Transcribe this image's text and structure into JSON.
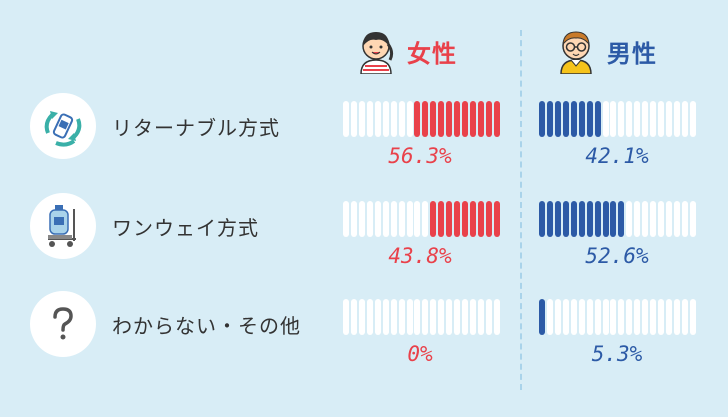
{
  "colors": {
    "background": "#d8edf6",
    "female": "#e9414a",
    "male": "#2c5aa6",
    "empty_segment": "#ffffff",
    "divider": "#a9d3ea"
  },
  "headers": {
    "female": {
      "label": "女性",
      "icon": "girl-avatar-icon"
    },
    "male": {
      "label": "男性",
      "icon": "boy-glasses-avatar-icon"
    }
  },
  "chart_data": {
    "type": "bar",
    "segments_per_bar": 20,
    "categories": [
      "リターナブル方式",
      "ワンウェイ方式",
      "わからない・その他"
    ],
    "category_icons": [
      "recycle-bottle-icon",
      "water-server-bottle-icon",
      "question-mark-icon"
    ],
    "series": [
      {
        "name": "女性",
        "values": [
          56.3,
          43.8,
          0
        ],
        "labels": [
          "56.3%",
          "43.8%",
          "0%"
        ],
        "color": "#e9414a"
      },
      {
        "name": "男性",
        "values": [
          42.1,
          52.6,
          5.3
        ],
        "labels": [
          "42.1%",
          "52.6%",
          "5.3%"
        ],
        "color": "#2c5aa6"
      }
    ]
  }
}
